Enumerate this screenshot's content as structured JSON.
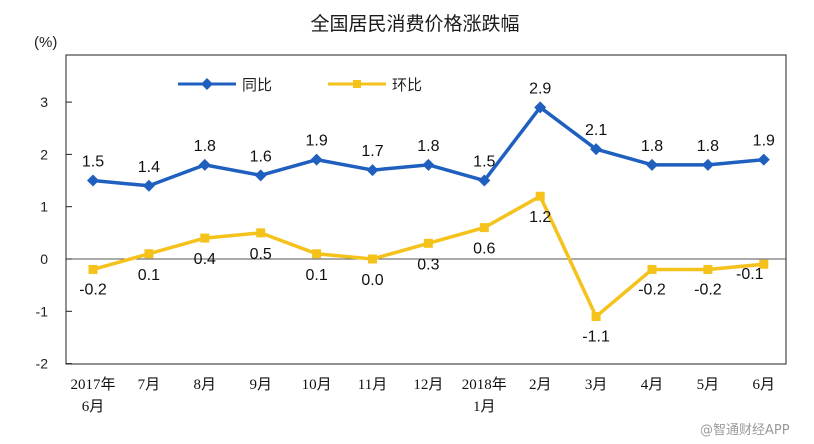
{
  "chart_data": {
    "type": "line",
    "title": "全国居民消费价格涨跌幅",
    "ylabel": "(%)",
    "ylim": [
      -2,
      4
    ],
    "yticks": [
      "-2",
      "-1",
      "0",
      "1",
      "2",
      "3"
    ],
    "categories": [
      {
        "line1": "2017年",
        "line2": "6月"
      },
      {
        "line1": "7月",
        "line2": ""
      },
      {
        "line1": "8月",
        "line2": ""
      },
      {
        "line1": "9月",
        "line2": ""
      },
      {
        "line1": "10月",
        "line2": ""
      },
      {
        "line1": "11月",
        "line2": ""
      },
      {
        "line1": "12月",
        "line2": ""
      },
      {
        "line1": "2018年",
        "line2": "1月"
      },
      {
        "line1": "2月",
        "line2": ""
      },
      {
        "line1": "3月",
        "line2": ""
      },
      {
        "line1": "4月",
        "line2": ""
      },
      {
        "line1": "5月",
        "line2": ""
      },
      {
        "line1": "6月",
        "line2": ""
      }
    ],
    "series": [
      {
        "name": "同比",
        "color": "#1f5fbf",
        "marker": "diamond",
        "values": [
          1.5,
          1.4,
          1.8,
          1.6,
          1.9,
          1.7,
          1.8,
          1.5,
          2.9,
          2.1,
          1.8,
          1.8,
          1.9
        ],
        "labels": [
          "1.5",
          "1.4",
          "1.8",
          "1.6",
          "1.9",
          "1.7",
          "1.8",
          "1.5",
          "2.9",
          "2.1",
          "1.8",
          "1.8",
          "1.9"
        ]
      },
      {
        "name": "环比",
        "color": "#f5c21b",
        "marker": "square",
        "values": [
          -0.2,
          0.1,
          0.4,
          0.5,
          0.1,
          0.0,
          0.3,
          0.6,
          1.2,
          -1.1,
          -0.2,
          -0.2,
          -0.1
        ],
        "labels": [
          "-0.2",
          "0.1",
          "0.4",
          "0.5",
          "0.1",
          "0.0",
          "0.3",
          "0.6",
          "1.2",
          "-1.1",
          "-0.2",
          "-0.2",
          "-0.1"
        ]
      }
    ],
    "legend_position": "top-left",
    "grid": false
  },
  "watermark": "@智通财经APP"
}
